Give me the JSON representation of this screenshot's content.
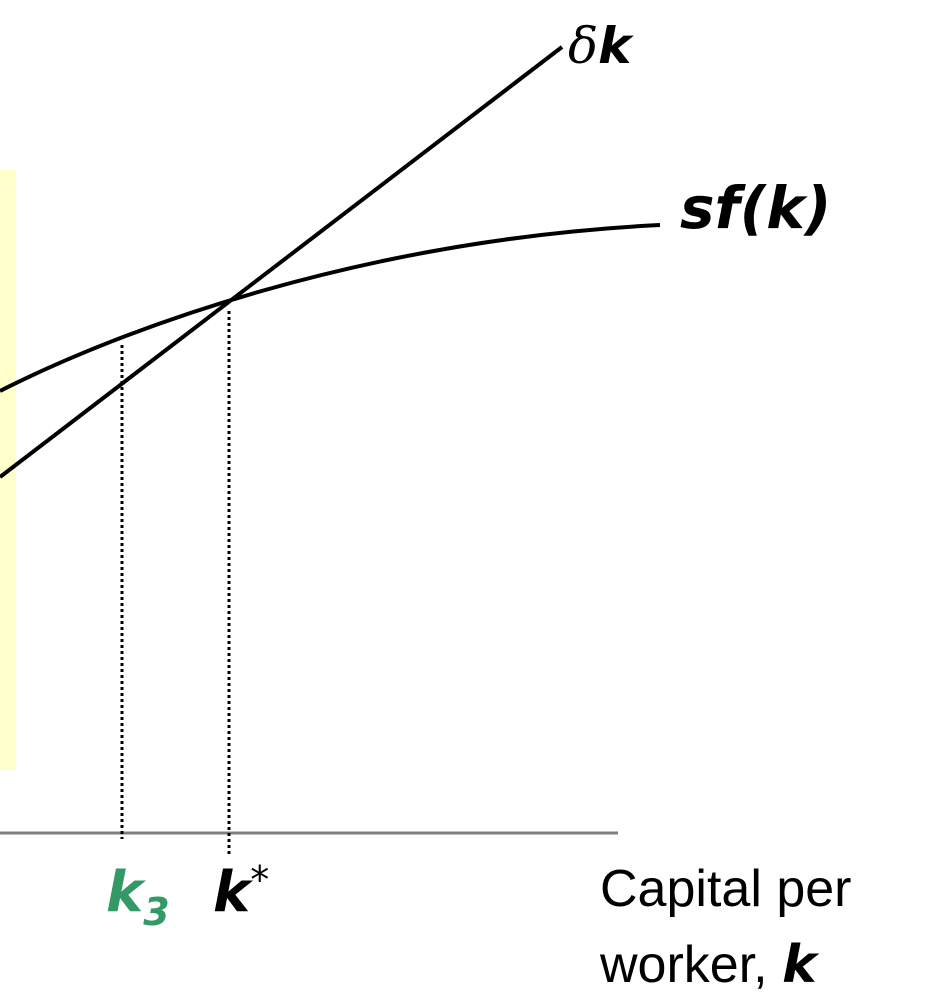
{
  "chart_data": {
    "type": "line",
    "xlabel_line1": "Capital per",
    "xlabel_line2_prefix": "worker, ",
    "xlabel_var": "k",
    "series": [
      {
        "name": "δk",
        "name_symbol": "δ",
        "name_var": "k",
        "form": "linear",
        "slope": 0.45
      },
      {
        "name": "sf(k)",
        "form": "concave"
      }
    ],
    "markers": [
      {
        "name": "k3",
        "label_main": "k",
        "label_sub": "3",
        "color": "#339966",
        "x": 0.53
      },
      {
        "name": "k*",
        "label_main": "k",
        "label_sup": "*",
        "color": "#000000",
        "x": 1.0
      }
    ],
    "shading_color": "#ffffcc",
    "axis_color": "#808080"
  }
}
